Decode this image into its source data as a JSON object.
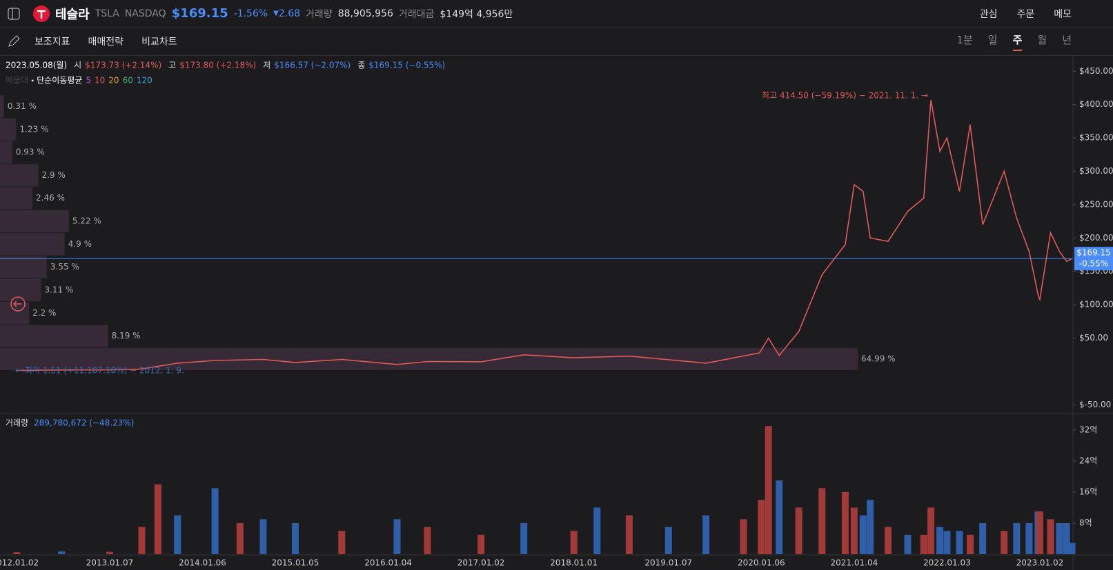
{
  "header": {
    "name": "테슬라",
    "ticker": "TSLA",
    "exchange": "NASDAQ",
    "price": "$169.15",
    "change_pct": "-1.56%",
    "change": "2.68",
    "volume_label": "거래량",
    "volume": "88,905,956",
    "amount_label": "거래대금",
    "amount": "$149억 4,956만",
    "actions": [
      "관심",
      "주문",
      "메모"
    ]
  },
  "toolbar": {
    "tools": [
      "보조지표",
      "매매전략",
      "비교차트"
    ],
    "periods": [
      "1분",
      "일",
      "주",
      "월",
      "년"
    ],
    "active": "주"
  },
  "chart_data": [
    {
      "type": "line",
      "date_label": "2023.05.08(월)",
      "ohlc": [
        {
          "label": "시",
          "value": "$173.73 (+2.14%)",
          "color": "#e05a5a"
        },
        {
          "label": "고",
          "value": "$173.80 (+2.18%)",
          "color": "#e05a5a"
        },
        {
          "label": "저",
          "value": "$166.57 (−2.07%)",
          "color": "#4a8df8"
        },
        {
          "label": "종",
          "value": "$169.15 (−0.55%)",
          "color": "#4a8df8"
        }
      ],
      "profile_label": "매물대",
      "ma_label": "단순이동평균",
      "ma_periods": [
        5,
        10,
        20,
        60,
        120
      ],
      "ma_colors": [
        "#b05ad0",
        "#e05a5a",
        "#e8a33a",
        "#3cb371",
        "#3aa6d8"
      ],
      "high_annotation": "최고 414.50 (−59.19%) − 2021. 11. 1. →",
      "low_annotation": "← 최저 1.51 (+11,107.18%) − 2012. 1. 9.",
      "current_price": {
        "value": 169.15,
        "label": "$169.15",
        "change": "-0.55%"
      },
      "volume_profile": {
        "bins": [
          1.5,
          35.9,
          70.3,
          104.7,
          139.1,
          173.5,
          207.9,
          242.3,
          276.7,
          311.1,
          345.5,
          379.9,
          414.3
        ],
        "values": [
          64.99,
          8.19,
          2.2,
          3.11,
          3.55,
          4.9,
          5.22,
          2.46,
          2.9,
          0.93,
          1.23,
          0.31
        ],
        "value_labels": [
          "64.99 %",
          "8.19 %",
          "2.2 %",
          "3.11 %",
          "3.55 %",
          "4.9 %",
          "5.22 %",
          "2.46 %",
          "2.9 %",
          "0.93 %",
          "1.23 %",
          "0.31 %"
        ]
      },
      "x": [
        "2012.01.09",
        "2012.07.02",
        "2013.01.07",
        "2013.05.06",
        "2013.09.30",
        "2014.02.24",
        "2014.09.01",
        "2015.01.05",
        "2015.07.06",
        "2016.02.08",
        "2016.06.06",
        "2017.01.02",
        "2017.06.19",
        "2018.01.01",
        "2018.08.06",
        "2019.06.03",
        "2019.12.30",
        "2020.02.03",
        "2020.03.16",
        "2020.06.01",
        "2020.08.31",
        "2020.11.30",
        "2021.01.04",
        "2021.02.08",
        "2021.03.08",
        "2021.05.17",
        "2021.08.02",
        "2021.10.04",
        "2021.11.01",
        "2021.12.06",
        "2022.01.03",
        "2022.02.21",
        "2022.04.04",
        "2022.05.23",
        "2022.08.15",
        "2022.10.03",
        "2022.11.21",
        "2022.12.26",
        "2023.01.02",
        "2023.02.13",
        "2023.03.20",
        "2023.04.17",
        "2023.05.08"
      ],
      "values": [
        1.51,
        2.2,
        2.3,
        3.5,
        12.5,
        16.5,
        18,
        13.5,
        18,
        10.5,
        15,
        14.5,
        25,
        20.5,
        23,
        12.5,
        27.9,
        50,
        24,
        60,
        145,
        190,
        280,
        270,
        200,
        195,
        240,
        260,
        407,
        330,
        350,
        270,
        370,
        220,
        300,
        230,
        180,
        115,
        108,
        208,
        180,
        165,
        169.15
      ],
      "color": "#e05a5a",
      "xlim": [
        "2011.11.04",
        "2023.05.12"
      ],
      "ylim": [
        -62,
        472
      ],
      "yticks": [
        {
          "value": 450,
          "label": "$450.00"
        },
        {
          "value": 400,
          "label": "$400.00"
        },
        {
          "value": 350,
          "label": "$350.00"
        },
        {
          "value": 300,
          "label": "$300.00"
        },
        {
          "value": 250,
          "label": "$250.00"
        },
        {
          "value": 200,
          "label": "$200.00"
        },
        {
          "value": 150,
          "label": "$150.00"
        },
        {
          "value": 100,
          "label": "$100.00"
        },
        {
          "value": 50,
          "label": "$50.00"
        },
        {
          "value": -50,
          "label": "$-50.00"
        }
      ]
    },
    {
      "type": "bar",
      "title": "거래량",
      "legend_value": "289,780,672 (−48.23%)",
      "x": [
        "2012.01.09",
        "2012.07.02",
        "2013.01.07",
        "2013.05.13",
        "2013.07.15",
        "2013.09.30",
        "2014.02.24",
        "2014.06.02",
        "2014.09.01",
        "2015.01.05",
        "2015.07.06",
        "2016.02.08",
        "2016.06.06",
        "2017.01.02",
        "2017.06.19",
        "2018.01.01",
        "2018.04.02",
        "2018.08.06",
        "2019.01.07",
        "2019.06.03",
        "2019.10.28",
        "2020.01.06",
        "2020.02.03",
        "2020.03.16",
        "2020.06.01",
        "2020.08.31",
        "2020.11.30",
        "2021.01.04",
        "2021.02.08",
        "2021.03.08",
        "2021.05.17",
        "2021.08.02",
        "2021.10.04",
        "2021.11.01",
        "2021.12.06",
        "2022.01.03",
        "2022.02.21",
        "2022.04.04",
        "2022.05.23",
        "2022.08.15",
        "2022.10.03",
        "2022.11.21",
        "2022.12.26",
        "2023.01.02",
        "2023.02.13",
        "2023.03.20",
        "2023.04.17",
        "2023.05.08"
      ],
      "values": [
        0.5,
        0.7,
        0.6,
        7,
        18,
        10,
        17,
        8,
        9,
        8,
        6,
        9,
        7,
        5,
        8,
        6,
        12,
        10,
        7,
        10,
        9,
        14,
        33,
        19,
        12,
        17,
        16,
        12,
        10,
        14,
        7,
        5,
        5,
        12,
        7,
        6,
        6,
        5,
        8,
        6,
        8,
        8,
        11,
        11,
        9,
        8,
        8,
        2.9
      ],
      "bar_colors": [
        "#a33a3a",
        "#2f5fa8",
        "#a33a3a",
        "#a33a3a",
        "#a33a3a",
        "#2f5fa8",
        "#2f5fa8",
        "#a33a3a",
        "#2f5fa8",
        "#2f5fa8",
        "#a33a3a",
        "#2f5fa8",
        "#a33a3a",
        "#a33a3a",
        "#2f5fa8",
        "#a33a3a",
        "#2f5fa8",
        "#a33a3a",
        "#2f5fa8",
        "#2f5fa8",
        "#a33a3a",
        "#a33a3a",
        "#a33a3a",
        "#2f5fa8",
        "#a33a3a",
        "#a33a3a",
        "#a33a3a",
        "#a33a3a",
        "#2f5fa8",
        "#2f5fa8",
        "#a33a3a",
        "#2f5fa8",
        "#a33a3a",
        "#a33a3a",
        "#2f5fa8",
        "#2f5fa8",
        "#2f5fa8",
        "#a33a3a",
        "#2f5fa8",
        "#a33a3a",
        "#2f5fa8",
        "#2f5fa8",
        "#2f5fa8",
        "#a33a3a",
        "#a33a3a",
        "#2f5fa8",
        "#2f5fa8",
        "#2f5fa8"
      ],
      "xlim": [
        "2011.11.04",
        "2023.05.12"
      ],
      "ylim": [
        0,
        35.7
      ],
      "yticks": [
        {
          "value": 8,
          "label": "8억"
        },
        {
          "value": 16,
          "label": "16억"
        },
        {
          "value": 24,
          "label": "24억"
        },
        {
          "value": 32,
          "label": "32억"
        }
      ],
      "xticks": [
        "2012.01.02",
        "2013.01.07",
        "2014.01.06",
        "2015.01.05",
        "2016.01.04",
        "2017.01.02",
        "2018.01.01",
        "2019.01.07",
        "2020.01.06",
        "2021.01.04",
        "2022.01.03",
        "2023.01.02"
      ]
    }
  ]
}
